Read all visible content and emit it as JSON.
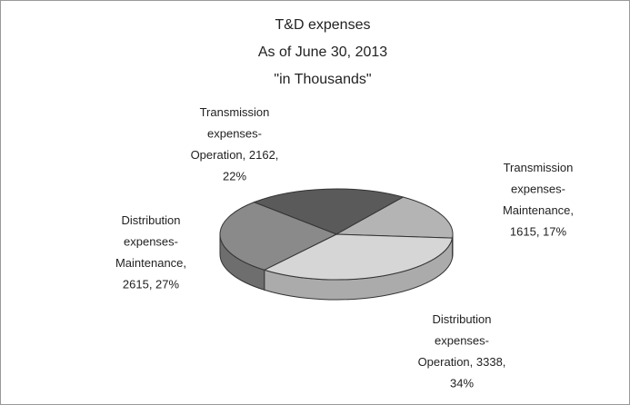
{
  "chart_data": {
    "type": "pie",
    "title": [
      "T&D expenses",
      "As of June 30, 2013",
      "\"in Thousands\""
    ],
    "values": [
      2162,
      1615,
      3338,
      2615
    ],
    "value_labels": [
      [
        "Transmission",
        "expenses-",
        "Operation, 2162,",
        "22%"
      ],
      [
        "Transmission",
        "expenses-",
        "Maintenance,",
        "1615, 17%"
      ],
      [
        "Distribution",
        "expenses-",
        "Operation, 3338,",
        "34%"
      ],
      [
        "Distribution",
        "expenses-",
        "Maintenance,",
        "2615, 27%"
      ]
    ],
    "colors": [
      "#5a5a5a",
      "#b4b4b4",
      "#d6d6d6",
      "#8a8a8a"
    ]
  }
}
